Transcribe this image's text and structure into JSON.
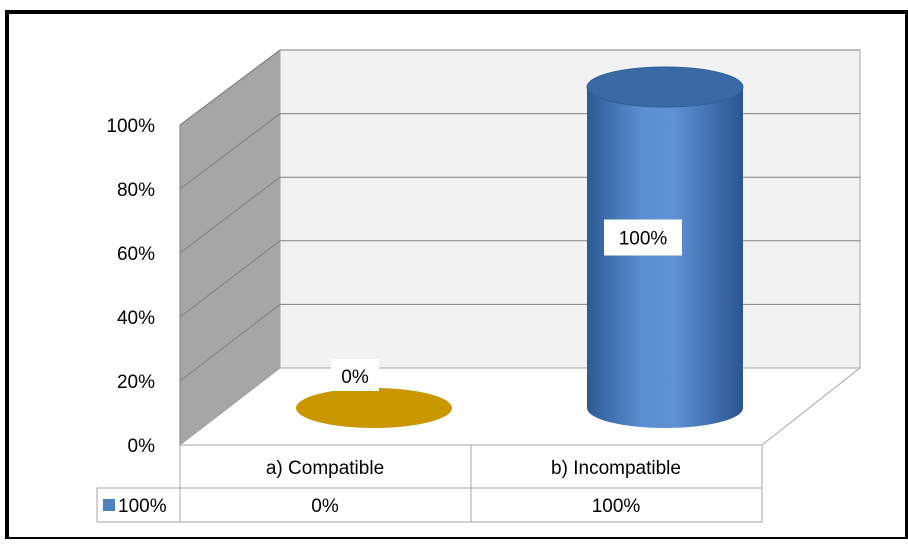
{
  "chart_data": {
    "type": "bar",
    "style": "3d-cylinder",
    "categories": [
      "a) Compatible",
      "b) Incompatible"
    ],
    "series": [
      {
        "name": "100%",
        "values": [
          0,
          100
        ],
        "labels": [
          "0%",
          "100%"
        ]
      }
    ],
    "colors": [
      "#C99700",
      "#4F81BD"
    ],
    "legend_color": "#4F81BD",
    "ylim": [
      0,
      100
    ],
    "yticks": [
      "0%",
      "20%",
      "40%",
      "60%",
      "80%",
      "100%"
    ],
    "grid": true,
    "data_table": true,
    "legend": "data-table-key"
  }
}
